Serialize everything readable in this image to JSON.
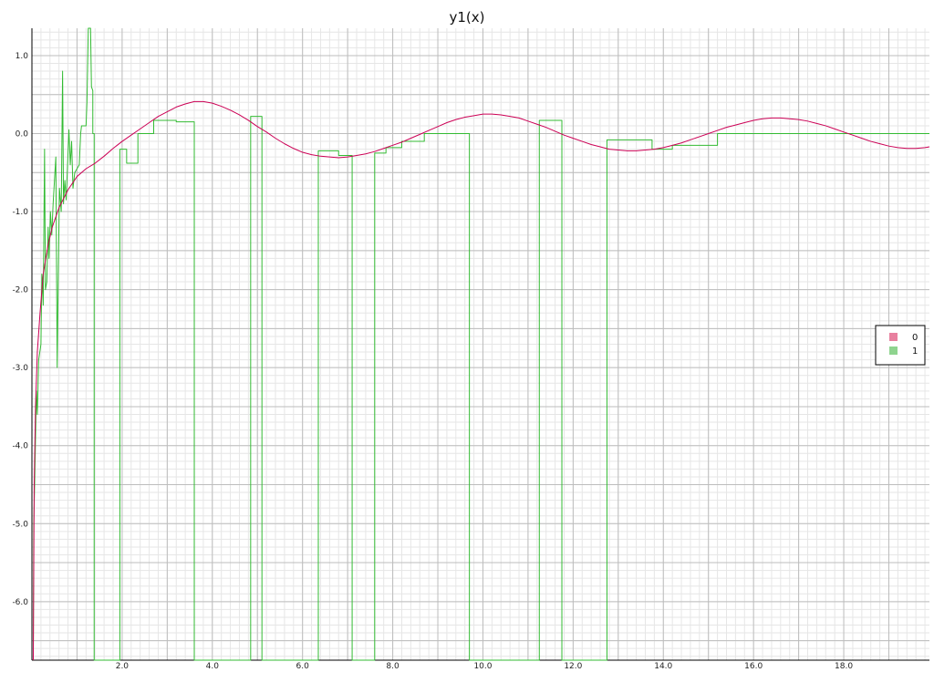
{
  "chart_data": {
    "type": "line",
    "title": "y1(x)",
    "xlabel": "",
    "ylabel": "",
    "xlim": [
      0.0,
      19.9
    ],
    "ylim": [
      -6.75,
      1.35
    ],
    "x_ticks": [
      2.0,
      4.0,
      6.0,
      8.0,
      10.0,
      12.0,
      14.0,
      16.0,
      18.0
    ],
    "x_tick_labels": [
      "2.0",
      "4.0",
      "6.0",
      "8.0",
      "10.0",
      "12.0",
      "14.0",
      "16.0",
      "18.0"
    ],
    "y_ticks": [
      1.0,
      0.0,
      -1.0,
      -2.0,
      -3.0,
      -4.0,
      -5.0,
      -6.0
    ],
    "y_tick_labels": [
      "1.0",
      "0.0",
      "-1.0",
      "-2.0",
      "-3.0",
      "-4.0",
      "-5.0",
      "-6.0"
    ],
    "grid": true,
    "legend_position": "right",
    "series": [
      {
        "name": "0",
        "color": "#cc0055",
        "points": [
          [
            0.03,
            -6.75
          ],
          [
            0.05,
            -4.5
          ],
          [
            0.08,
            -3.5
          ],
          [
            0.12,
            -2.8
          ],
          [
            0.18,
            -2.3
          ],
          [
            0.25,
            -1.8
          ],
          [
            0.35,
            -1.45
          ],
          [
            0.45,
            -1.2
          ],
          [
            0.6,
            -0.95
          ],
          [
            0.8,
            -0.72
          ],
          [
            1.0,
            -0.55
          ],
          [
            1.2,
            -0.45
          ],
          [
            1.4,
            -0.38
          ],
          [
            1.6,
            -0.29
          ],
          [
            1.8,
            -0.19
          ],
          [
            2.0,
            -0.1
          ],
          [
            2.2,
            -0.02
          ],
          [
            2.4,
            0.06
          ],
          [
            2.6,
            0.14
          ],
          [
            2.8,
            0.22
          ],
          [
            3.0,
            0.28
          ],
          [
            3.2,
            0.34
          ],
          [
            3.4,
            0.38
          ],
          [
            3.6,
            0.41
          ],
          [
            3.8,
            0.41
          ],
          [
            4.0,
            0.39
          ],
          [
            4.2,
            0.35
          ],
          [
            4.4,
            0.3
          ],
          [
            4.6,
            0.24
          ],
          [
            4.8,
            0.17
          ],
          [
            5.0,
            0.09
          ],
          [
            5.2,
            0.02
          ],
          [
            5.4,
            -0.06
          ],
          [
            5.6,
            -0.13
          ],
          [
            5.8,
            -0.19
          ],
          [
            6.0,
            -0.24
          ],
          [
            6.2,
            -0.27
          ],
          [
            6.4,
            -0.29
          ],
          [
            6.6,
            -0.3
          ],
          [
            6.8,
            -0.31
          ],
          [
            7.0,
            -0.3
          ],
          [
            7.2,
            -0.28
          ],
          [
            7.4,
            -0.26
          ],
          [
            7.6,
            -0.23
          ],
          [
            7.8,
            -0.19
          ],
          [
            8.0,
            -0.15
          ],
          [
            8.2,
            -0.11
          ],
          [
            8.4,
            -0.06
          ],
          [
            8.6,
            -0.01
          ],
          [
            8.8,
            0.04
          ],
          [
            9.0,
            0.09
          ],
          [
            9.2,
            0.14
          ],
          [
            9.4,
            0.18
          ],
          [
            9.6,
            0.21
          ],
          [
            9.8,
            0.23
          ],
          [
            10.0,
            0.25
          ],
          [
            10.2,
            0.25
          ],
          [
            10.4,
            0.24
          ],
          [
            10.6,
            0.22
          ],
          [
            10.8,
            0.2
          ],
          [
            11.0,
            0.16
          ],
          [
            11.2,
            0.12
          ],
          [
            11.4,
            0.08
          ],
          [
            11.6,
            0.03
          ],
          [
            11.8,
            -0.02
          ],
          [
            12.0,
            -0.06
          ],
          [
            12.2,
            -0.1
          ],
          [
            12.4,
            -0.14
          ],
          [
            12.6,
            -0.17
          ],
          [
            12.8,
            -0.2
          ],
          [
            13.0,
            -0.21
          ],
          [
            13.2,
            -0.22
          ],
          [
            13.4,
            -0.22
          ],
          [
            13.6,
            -0.21
          ],
          [
            13.8,
            -0.2
          ],
          [
            14.0,
            -0.18
          ],
          [
            14.2,
            -0.15
          ],
          [
            14.4,
            -0.12
          ],
          [
            14.6,
            -0.08
          ],
          [
            14.8,
            -0.04
          ],
          [
            15.0,
            0.0
          ],
          [
            15.2,
            0.04
          ],
          [
            15.4,
            0.08
          ],
          [
            15.6,
            0.11
          ],
          [
            15.8,
            0.14
          ],
          [
            16.0,
            0.17
          ],
          [
            16.2,
            0.19
          ],
          [
            16.4,
            0.2
          ],
          [
            16.6,
            0.2
          ],
          [
            16.8,
            0.19
          ],
          [
            17.0,
            0.18
          ],
          [
            17.2,
            0.16
          ],
          [
            17.4,
            0.13
          ],
          [
            17.6,
            0.1
          ],
          [
            17.8,
            0.06
          ],
          [
            18.0,
            0.02
          ],
          [
            18.2,
            -0.02
          ],
          [
            18.4,
            -0.06
          ],
          [
            18.6,
            -0.1
          ],
          [
            18.8,
            -0.13
          ],
          [
            19.0,
            -0.16
          ],
          [
            19.2,
            -0.18
          ],
          [
            19.4,
            -0.19
          ],
          [
            19.6,
            -0.19
          ],
          [
            19.8,
            -0.18
          ],
          [
            19.9,
            -0.17
          ]
        ]
      },
      {
        "name": "1",
        "color": "#33bb33",
        "points": [
          [
            0.03,
            -6.75
          ],
          [
            0.04,
            -5.0
          ],
          [
            0.06,
            -4.5
          ],
          [
            0.1,
            -3.3
          ],
          [
            0.12,
            -3.6
          ],
          [
            0.15,
            -2.9
          ],
          [
            0.2,
            -2.7
          ],
          [
            0.22,
            -1.8
          ],
          [
            0.25,
            -2.2
          ],
          [
            0.28,
            -0.2
          ],
          [
            0.3,
            -2.0
          ],
          [
            0.33,
            -1.9
          ],
          [
            0.36,
            -1.2
          ],
          [
            0.38,
            -1.6
          ],
          [
            0.41,
            -1.0
          ],
          [
            0.44,
            -1.3
          ],
          [
            0.47,
            -0.9
          ],
          [
            0.5,
            -0.6
          ],
          [
            0.53,
            -0.3
          ],
          [
            0.56,
            -3.0
          ],
          [
            0.58,
            -2.0
          ],
          [
            0.61,
            -0.7
          ],
          [
            0.65,
            -1.0
          ],
          [
            0.68,
            0.8
          ],
          [
            0.7,
            -0.9
          ],
          [
            0.73,
            -0.6
          ],
          [
            0.76,
            -0.85
          ],
          [
            0.79,
            -0.4
          ],
          [
            0.82,
            0.05
          ],
          [
            0.85,
            -0.4
          ],
          [
            0.88,
            -0.1
          ],
          [
            0.91,
            -0.7
          ],
          [
            0.95,
            -0.5
          ],
          [
            1.0,
            -0.45
          ],
          [
            1.05,
            -0.4
          ],
          [
            1.08,
            0.0
          ],
          [
            1.1,
            0.1
          ],
          [
            1.2,
            0.1
          ],
          [
            1.22,
            0.4
          ],
          [
            1.25,
            1.35
          ],
          [
            1.3,
            1.35
          ],
          [
            1.32,
            0.6
          ],
          [
            1.35,
            0.55
          ],
          [
            1.35,
            0.0
          ],
          [
            1.38,
            0.0
          ],
          [
            1.38,
            -6.75
          ],
          [
            1.95,
            -6.75
          ],
          [
            1.95,
            -0.2
          ],
          [
            2.1,
            -0.2
          ],
          [
            2.1,
            -0.38
          ],
          [
            2.35,
            -0.38
          ],
          [
            2.35,
            0.0
          ],
          [
            2.7,
            0.0
          ],
          [
            2.7,
            0.17
          ],
          [
            3.2,
            0.17
          ],
          [
            3.2,
            0.15
          ],
          [
            3.6,
            0.15
          ],
          [
            3.6,
            -6.75
          ],
          [
            4.85,
            -6.75
          ],
          [
            4.85,
            0.22
          ],
          [
            5.1,
            0.22
          ],
          [
            5.1,
            -6.75
          ],
          [
            6.35,
            -6.75
          ],
          [
            6.35,
            -0.22
          ],
          [
            6.8,
            -0.22
          ],
          [
            6.8,
            -0.28
          ],
          [
            7.1,
            -0.28
          ],
          [
            7.1,
            -6.75
          ],
          [
            7.6,
            -6.75
          ],
          [
            7.6,
            -0.25
          ],
          [
            7.85,
            -0.25
          ],
          [
            7.85,
            -0.18
          ],
          [
            8.2,
            -0.18
          ],
          [
            8.2,
            -0.1
          ],
          [
            8.7,
            -0.1
          ],
          [
            8.7,
            0.0
          ],
          [
            9.7,
            0.0
          ],
          [
            9.7,
            -6.75
          ],
          [
            11.25,
            -6.75
          ],
          [
            11.25,
            0.17
          ],
          [
            11.75,
            0.17
          ],
          [
            11.75,
            -6.75
          ],
          [
            12.75,
            -6.75
          ],
          [
            12.75,
            -0.08
          ],
          [
            13.75,
            -0.08
          ],
          [
            13.75,
            -0.2
          ],
          [
            14.2,
            -0.2
          ],
          [
            14.2,
            -0.15
          ],
          [
            15.2,
            -0.15
          ],
          [
            15.2,
            0.0
          ],
          [
            19.9,
            0.0
          ]
        ]
      }
    ]
  }
}
